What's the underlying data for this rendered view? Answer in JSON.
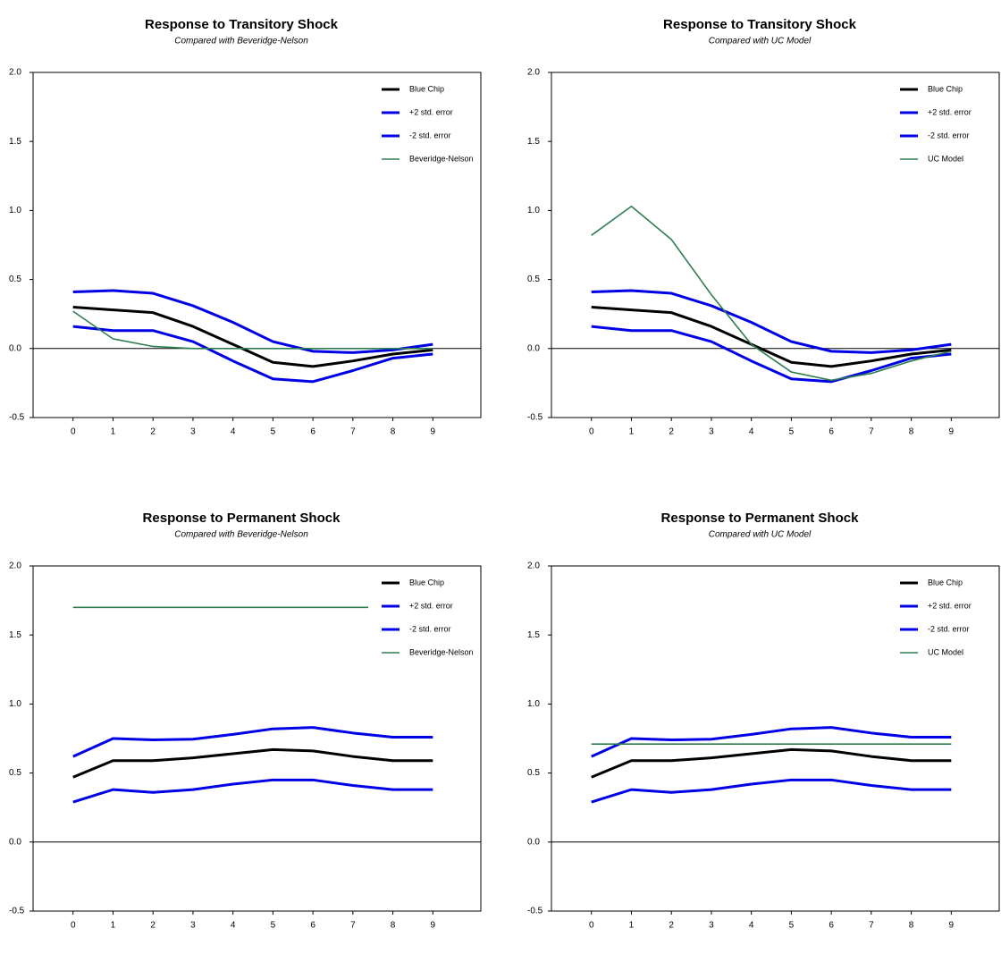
{
  "chart_data": [
    {
      "type": "line",
      "title": "Response to Transitory Shock",
      "subtitle": "Compared with Beveridge-Nelson",
      "x": [
        0,
        1,
        2,
        3,
        4,
        5,
        6,
        7,
        8,
        9
      ],
      "xlim": [
        -1,
        10.2
      ],
      "xticks": [
        0,
        1,
        2,
        3,
        4,
        5,
        6,
        7,
        8,
        9
      ],
      "ylim": [
        -0.5,
        2
      ],
      "yticks": [
        -0.5,
        {
          "value": 0,
          "label": "0.0"
        },
        {
          "value": 0.5,
          "label": "0.5"
        },
        {
          "value": 1,
          "label": "1.0"
        },
        {
          "value": 1.5,
          "label": "1.5"
        },
        {
          "value": 2,
          "label": "2.0"
        }
      ],
      "legend": "upper right",
      "series": [
        {
          "name": "Blue Chip",
          "color": "#000000",
          "values": [
            0.3,
            0.28,
            0.26,
            0.16,
            0.03,
            -0.1,
            -0.13,
            -0.09,
            -0.04,
            -0.01
          ]
        },
        {
          "name": "+2 std. error",
          "color": "#0000e6",
          "values": [
            0.41,
            0.42,
            0.4,
            0.31,
            0.19,
            0.05,
            -0.02,
            -0.03,
            -0.01,
            0.03
          ]
        },
        {
          "name": "-2 std. error",
          "color": "#0000e6",
          "values": [
            0.16,
            0.13,
            0.13,
            0.05,
            -0.09,
            -0.22,
            -0.24,
            -0.16,
            -0.07,
            -0.04
          ]
        },
        {
          "name": "Beveridge-Nelson",
          "color": "#2e7d4f",
          "values": [
            0.27,
            0.07,
            0.015,
            0,
            0,
            0,
            0,
            0,
            0,
            0
          ]
        }
      ]
    },
    {
      "type": "line",
      "title": "Response to Transitory Shock",
      "subtitle": "Compared with UC Model",
      "x": [
        0,
        1,
        2,
        3,
        4,
        5,
        6,
        7,
        8,
        9
      ],
      "xlim": [
        -1,
        10.2
      ],
      "xticks": [
        0,
        1,
        2,
        3,
        4,
        5,
        6,
        7,
        8,
        9
      ],
      "ylim": [
        -0.5,
        2
      ],
      "yticks": [
        -0.5,
        {
          "value": 0,
          "label": "0.0"
        },
        {
          "value": 0.5,
          "label": "0.5"
        },
        {
          "value": 1,
          "label": "1.0"
        },
        {
          "value": 1.5,
          "label": "1.5"
        },
        {
          "value": 2,
          "label": "2.0"
        }
      ],
      "legend": "upper right",
      "series": [
        {
          "name": "Blue Chip",
          "color": "#000000",
          "values": [
            0.3,
            0.28,
            0.26,
            0.16,
            0.03,
            -0.1,
            -0.13,
            -0.09,
            -0.04,
            -0.01
          ]
        },
        {
          "name": "+2 std. error",
          "color": "#0000e6",
          "values": [
            0.41,
            0.42,
            0.4,
            0.31,
            0.19,
            0.05,
            -0.02,
            -0.03,
            -0.01,
            0.03
          ]
        },
        {
          "name": "-2 std. error",
          "color": "#0000e6",
          "values": [
            0.16,
            0.13,
            0.13,
            0.05,
            -0.09,
            -0.22,
            -0.24,
            -0.16,
            -0.07,
            -0.04
          ]
        },
        {
          "name": "UC Model",
          "color": "#2e7d4f",
          "values": [
            0.82,
            1.03,
            0.79,
            0.39,
            0.03,
            -0.17,
            -0.23,
            -0.18,
            -0.09,
            -0.02
          ]
        }
      ]
    },
    {
      "type": "line",
      "title": "Response to Permanent Shock",
      "subtitle": "Compared with Beveridge-Nelson",
      "x": [
        0,
        1,
        2,
        3,
        4,
        5,
        6,
        7,
        8,
        9
      ],
      "xlim": [
        -1,
        10.2
      ],
      "xticks": [
        0,
        1,
        2,
        3,
        4,
        5,
        6,
        7,
        8,
        9
      ],
      "ylim": [
        -0.5,
        2
      ],
      "yticks": [
        -0.5,
        {
          "value": 0,
          "label": "0.0"
        },
        {
          "value": 0.5,
          "label": "0.5"
        },
        {
          "value": 1,
          "label": "1.0"
        },
        {
          "value": 1.5,
          "label": "1.5"
        },
        {
          "value": 2,
          "label": "2.0"
        }
      ],
      "legend": "upper right",
      "series": [
        {
          "name": "Blue Chip",
          "color": "#000000",
          "values": [
            0.47,
            0.59,
            0.59,
            0.61,
            0.64,
            0.67,
            0.66,
            0.62,
            0.59,
            0.59
          ]
        },
        {
          "name": "+2 std. error",
          "color": "#0000e6",
          "values": [
            0.62,
            0.75,
            0.74,
            0.745,
            0.78,
            0.82,
            0.83,
            0.79,
            0.76,
            0.76
          ]
        },
        {
          "name": "-2 std. error",
          "color": "#0000e6",
          "values": [
            0.29,
            0.38,
            0.36,
            0.38,
            0.42,
            0.45,
            0.45,
            0.41,
            0.38,
            0.38
          ]
        },
        {
          "name": "Beveridge-Nelson",
          "color": "#2e7d4f",
          "values": [
            1.7,
            1.7,
            1.7,
            1.7,
            1.7,
            1.7,
            1.7,
            1.7,
            1.7,
            1.7
          ]
        }
      ]
    },
    {
      "type": "line",
      "title": "Response to Permanent Shock",
      "subtitle": "Compared with UC Model",
      "x": [
        0,
        1,
        2,
        3,
        4,
        5,
        6,
        7,
        8,
        9
      ],
      "xlim": [
        -1,
        10.2
      ],
      "xticks": [
        0,
        1,
        2,
        3,
        4,
        5,
        6,
        7,
        8,
        9
      ],
      "ylim": [
        -0.5,
        2
      ],
      "yticks": [
        -0.5,
        {
          "value": 0,
          "label": "0.0"
        },
        {
          "value": 0.5,
          "label": "0.5"
        },
        {
          "value": 1,
          "label": "1.0"
        },
        {
          "value": 1.5,
          "label": "1.5"
        },
        {
          "value": 2,
          "label": "2.0"
        }
      ],
      "legend": "upper right",
      "series": [
        {
          "name": "Blue Chip",
          "color": "#000000",
          "values": [
            0.47,
            0.59,
            0.59,
            0.61,
            0.64,
            0.67,
            0.66,
            0.62,
            0.59,
            0.59
          ]
        },
        {
          "name": "+2 std. error",
          "color": "#0000e6",
          "values": [
            0.62,
            0.75,
            0.74,
            0.745,
            0.78,
            0.82,
            0.83,
            0.79,
            0.76,
            0.76
          ]
        },
        {
          "name": "-2 std. error",
          "color": "#0000e6",
          "values": [
            0.29,
            0.38,
            0.36,
            0.38,
            0.42,
            0.45,
            0.45,
            0.41,
            0.38,
            0.38
          ]
        },
        {
          "name": "UC Model",
          "color": "#2e7d4f",
          "values": [
            0.71,
            0.71,
            0.71,
            0.71,
            0.71,
            0.71,
            0.71,
            0.71,
            0.71,
            0.71
          ]
        }
      ]
    }
  ]
}
